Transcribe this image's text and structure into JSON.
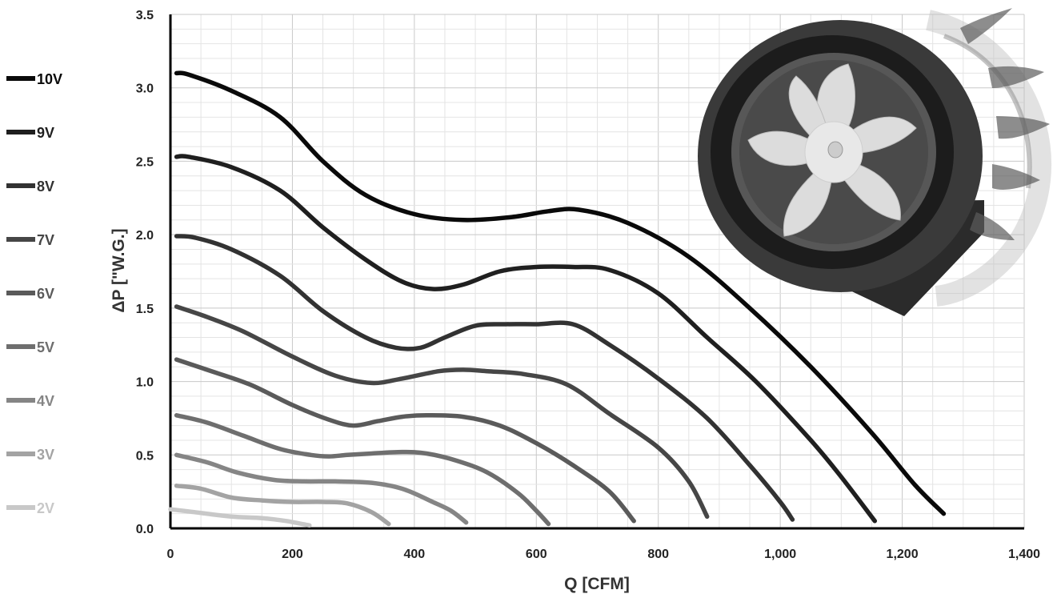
{
  "chart_data": {
    "type": "line",
    "title": "",
    "xlabel": "Q [CFM]",
    "ylabel": "ΔP [\"W.G.]",
    "xlim": [
      0,
      1400
    ],
    "ylim": [
      0,
      3.5
    ],
    "x_ticks": [
      "0",
      "200",
      "400",
      "600",
      "800",
      "1,000",
      "1,200",
      "1,400"
    ],
    "y_ticks": [
      "0.0",
      "0.5",
      "1.0",
      "1.5",
      "2.0",
      "2.5",
      "3.0",
      "3.5"
    ],
    "grid": true,
    "legend_position": "left",
    "series": [
      {
        "name": "10V",
        "color": "#0a0a0a",
        "points": [
          [
            10,
            3.1
          ],
          [
            30,
            3.09
          ],
          [
            100,
            2.98
          ],
          [
            180,
            2.8
          ],
          [
            250,
            2.5
          ],
          [
            320,
            2.27
          ],
          [
            400,
            2.14
          ],
          [
            480,
            2.1
          ],
          [
            560,
            2.12
          ],
          [
            620,
            2.16
          ],
          [
            670,
            2.17
          ],
          [
            750,
            2.08
          ],
          [
            850,
            1.85
          ],
          [
            950,
            1.5
          ],
          [
            1050,
            1.1
          ],
          [
            1150,
            0.65
          ],
          [
            1220,
            0.3
          ],
          [
            1268,
            0.1
          ]
        ]
      },
      {
        "name": "9V",
        "color": "#1f1f1f",
        "points": [
          [
            10,
            2.53
          ],
          [
            30,
            2.53
          ],
          [
            100,
            2.46
          ],
          [
            180,
            2.3
          ],
          [
            250,
            2.05
          ],
          [
            320,
            1.83
          ],
          [
            380,
            1.68
          ],
          [
            430,
            1.63
          ],
          [
            480,
            1.66
          ],
          [
            540,
            1.75
          ],
          [
            600,
            1.78
          ],
          [
            660,
            1.78
          ],
          [
            720,
            1.76
          ],
          [
            800,
            1.6
          ],
          [
            880,
            1.3
          ],
          [
            960,
            1.0
          ],
          [
            1050,
            0.6
          ],
          [
            1100,
            0.35
          ],
          [
            1155,
            0.05
          ]
        ]
      },
      {
        "name": "8V",
        "color": "#323232",
        "points": [
          [
            10,
            1.99
          ],
          [
            40,
            1.98
          ],
          [
            100,
            1.9
          ],
          [
            180,
            1.72
          ],
          [
            250,
            1.48
          ],
          [
            320,
            1.3
          ],
          [
            370,
            1.23
          ],
          [
            410,
            1.23
          ],
          [
            450,
            1.3
          ],
          [
            500,
            1.38
          ],
          [
            550,
            1.39
          ],
          [
            600,
            1.39
          ],
          [
            660,
            1.39
          ],
          [
            720,
            1.25
          ],
          [
            800,
            1.02
          ],
          [
            880,
            0.75
          ],
          [
            950,
            0.43
          ],
          [
            1000,
            0.18
          ],
          [
            1020,
            0.06
          ]
        ]
      },
      {
        "name": "7V",
        "color": "#464646",
        "points": [
          [
            10,
            1.51
          ],
          [
            60,
            1.44
          ],
          [
            120,
            1.34
          ],
          [
            200,
            1.17
          ],
          [
            270,
            1.04
          ],
          [
            330,
            0.99
          ],
          [
            380,
            1.02
          ],
          [
            440,
            1.07
          ],
          [
            480,
            1.08
          ],
          [
            520,
            1.07
          ],
          [
            580,
            1.05
          ],
          [
            650,
            0.98
          ],
          [
            720,
            0.78
          ],
          [
            800,
            0.55
          ],
          [
            850,
            0.32
          ],
          [
            880,
            0.08
          ]
        ]
      },
      {
        "name": "6V",
        "color": "#5a5a5a",
        "points": [
          [
            10,
            1.15
          ],
          [
            60,
            1.08
          ],
          [
            130,
            0.98
          ],
          [
            200,
            0.84
          ],
          [
            260,
            0.74
          ],
          [
            300,
            0.7
          ],
          [
            340,
            0.73
          ],
          [
            380,
            0.76
          ],
          [
            420,
            0.77
          ],
          [
            480,
            0.76
          ],
          [
            540,
            0.7
          ],
          [
            600,
            0.58
          ],
          [
            660,
            0.43
          ],
          [
            720,
            0.25
          ],
          [
            760,
            0.05
          ]
        ]
      },
      {
        "name": "5V",
        "color": "#6e6e6e",
        "points": [
          [
            10,
            0.77
          ],
          [
            60,
            0.72
          ],
          [
            120,
            0.63
          ],
          [
            180,
            0.54
          ],
          [
            230,
            0.5
          ],
          [
            260,
            0.49
          ],
          [
            290,
            0.5
          ],
          [
            330,
            0.51
          ],
          [
            380,
            0.52
          ],
          [
            420,
            0.51
          ],
          [
            470,
            0.46
          ],
          [
            520,
            0.38
          ],
          [
            570,
            0.24
          ],
          [
            600,
            0.12
          ],
          [
            620,
            0.03
          ]
        ]
      },
      {
        "name": "4V",
        "color": "#858585",
        "points": [
          [
            10,
            0.5
          ],
          [
            60,
            0.45
          ],
          [
            110,
            0.38
          ],
          [
            170,
            0.33
          ],
          [
            220,
            0.32
          ],
          [
            270,
            0.32
          ],
          [
            330,
            0.31
          ],
          [
            380,
            0.27
          ],
          [
            430,
            0.18
          ],
          [
            460,
            0.12
          ],
          [
            485,
            0.04
          ]
        ]
      },
      {
        "name": "3V",
        "color": "#a3a3a3",
        "points": [
          [
            10,
            0.29
          ],
          [
            50,
            0.27
          ],
          [
            100,
            0.21
          ],
          [
            150,
            0.19
          ],
          [
            200,
            0.18
          ],
          [
            250,
            0.18
          ],
          [
            290,
            0.17
          ],
          [
            330,
            0.11
          ],
          [
            358,
            0.03
          ]
        ]
      },
      {
        "name": "2V",
        "color": "#c8c8c8",
        "points": [
          [
            0,
            0.13
          ],
          [
            40,
            0.11
          ],
          [
            100,
            0.08
          ],
          [
            150,
            0.07
          ],
          [
            190,
            0.05
          ],
          [
            228,
            0.02
          ]
        ]
      }
    ]
  },
  "image": {
    "description_icon": "inline-duct-fan-icon"
  }
}
